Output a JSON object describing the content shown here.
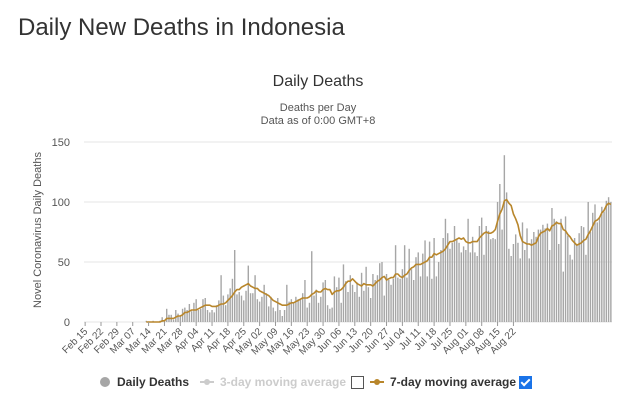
{
  "page": {
    "heading": "Daily New Deaths in Indonesia"
  },
  "legend": {
    "daily_label": "Daily Deaths",
    "ma3_label": "3-day moving average",
    "ma7_label": "7-day moving average",
    "ma3_checked": false,
    "ma7_checked": true
  },
  "colors": {
    "bar": "#a6a6a6",
    "ma7": "#b8862b",
    "ma3": "#cccccc",
    "grid": "#e6e6e6",
    "checkbox": "#1a73e8"
  },
  "chart_data": {
    "type": "bar",
    "title": "Daily Deaths",
    "subtitle": "Deaths per Day",
    "subtitle2": "Data as of 0:00 GMT+8",
    "ylabel": "Novel Coronavirus Daily Deaths",
    "ylim": [
      0,
      150
    ],
    "yticks": [
      0,
      50,
      100,
      150
    ],
    "x_start": "2020-02-15",
    "xticks": [
      "Feb 15",
      "Feb 22",
      "Feb 29",
      "Mar 07",
      "Mar 14",
      "Mar 21",
      "Mar 28",
      "Apr 04",
      "Apr 11",
      "Apr 18",
      "Apr 25",
      "May 02",
      "May 09",
      "May 16",
      "May 23",
      "May 30",
      "Jun 06",
      "Jun 13",
      "Jun 20",
      "Jun 27",
      "Jul 04",
      "Jul 11",
      "Jul 18",
      "Jul 25",
      "Aug 01",
      "Aug 08",
      "Aug 15",
      "Aug 22"
    ],
    "grid": true,
    "series": [
      {
        "name": "Daily Deaths",
        "type": "bar",
        "values": [
          0,
          0,
          0,
          0,
          0,
          0,
          0,
          0,
          0,
          0,
          0,
          0,
          0,
          0,
          0,
          0,
          0,
          0,
          0,
          0,
          0,
          0,
          0,
          0,
          0,
          0,
          0,
          1,
          0,
          0,
          1,
          0,
          0,
          1,
          4,
          1,
          11,
          6,
          6,
          2,
          10,
          7,
          5,
          11,
          12,
          10,
          15,
          9,
          16,
          19,
          10,
          11,
          19,
          20,
          10,
          8,
          10,
          8,
          14,
          18,
          39,
          22,
          14,
          23,
          28,
          36,
          60,
          23,
          25,
          22,
          18,
          26,
          47,
          24,
          24,
          39,
          19,
          17,
          21,
          31,
          24,
          13,
          21,
          12,
          9,
          20,
          10,
          5,
          10,
          31,
          17,
          19,
          16,
          21,
          19,
          19,
          24,
          35,
          12,
          16,
          59,
          22,
          27,
          16,
          21,
          33,
          35,
          14,
          11,
          12,
          38,
          29,
          37,
          16,
          48,
          34,
          25,
          39,
          31,
          25,
          33,
          21,
          41,
          26,
          46,
          29,
          20,
          40,
          35,
          39,
          49,
          50,
          22,
          40,
          35,
          31,
          36,
          64,
          37,
          36,
          44,
          64,
          37,
          61,
          44,
          35,
          54,
          58,
          38,
          57,
          68,
          38,
          67,
          36,
          70,
          38,
          50,
          60,
          70,
          86,
          74,
          61,
          66,
          80,
          69,
          66,
          58,
          63,
          60,
          86,
          58,
          71,
          58,
          55,
          80,
          87,
          56,
          80,
          76,
          69,
          70,
          69,
          100,
          115,
          77,
          139,
          108,
          61,
          55,
          65,
          73,
          66,
          53,
          83,
          60,
          78,
          53,
          69,
          75,
          71,
          77,
          77,
          81,
          78,
          82,
          60,
          95,
          86,
          84,
          65,
          86,
          42,
          88,
          72,
          56,
          52,
          70,
          65,
          74,
          80,
          79,
          56,
          100,
          75,
          91,
          98,
          83,
          87,
          96,
          92,
          101,
          104,
          100
        ]
      },
      {
        "name": "7-day moving average",
        "type": "line",
        "values": [
          null,
          null,
          null,
          null,
          null,
          null,
          null,
          null,
          null,
          null,
          null,
          null,
          null,
          null,
          null,
          null,
          null,
          null,
          null,
          null,
          null,
          null,
          null,
          null,
          null,
          null,
          null,
          0,
          0,
          0,
          0,
          0,
          0,
          0,
          1,
          1,
          3,
          3,
          3,
          3,
          4,
          5,
          5,
          6,
          8,
          8,
          9,
          10,
          10,
          10,
          11,
          12,
          13,
          14,
          14,
          14,
          13,
          13,
          13,
          14,
          15,
          15,
          16,
          18,
          20,
          22,
          25,
          27,
          27,
          29,
          30,
          31,
          32,
          30,
          29,
          28,
          28,
          26,
          25,
          24,
          23,
          22,
          20,
          18,
          17,
          16,
          15,
          14,
          14,
          14,
          15,
          16,
          16,
          17,
          18,
          19,
          20,
          20,
          20,
          21,
          23,
          24,
          26,
          25,
          25,
          27,
          28,
          27,
          27,
          23,
          25,
          26,
          26,
          27,
          29,
          32,
          34,
          34,
          36,
          34,
          32,
          31,
          30,
          32,
          31,
          31,
          31,
          30,
          32,
          34,
          35,
          37,
          38,
          35,
          36,
          37,
          37,
          40,
          40,
          38,
          37,
          39,
          40,
          43,
          45,
          46,
          48,
          48,
          48,
          49,
          50,
          51,
          54,
          54,
          57,
          56,
          57,
          58,
          59,
          61,
          64,
          67,
          67,
          68,
          69,
          70,
          69,
          70,
          67,
          66,
          66,
          67,
          67,
          67,
          70,
          72,
          74,
          75,
          74,
          74,
          75,
          77,
          84,
          90,
          94,
          101,
          102,
          99,
          97,
          90,
          86,
          81,
          72,
          67,
          66,
          65,
          65,
          64,
          65,
          66,
          71,
          74,
          75,
          76,
          78,
          76,
          80,
          81,
          83,
          82,
          82,
          77,
          76,
          73,
          71,
          68,
          66,
          64,
          65,
          66,
          68,
          69,
          73,
          76,
          80,
          84,
          85,
          87,
          91,
          93,
          97,
          99,
          98
        ]
      }
    ]
  }
}
